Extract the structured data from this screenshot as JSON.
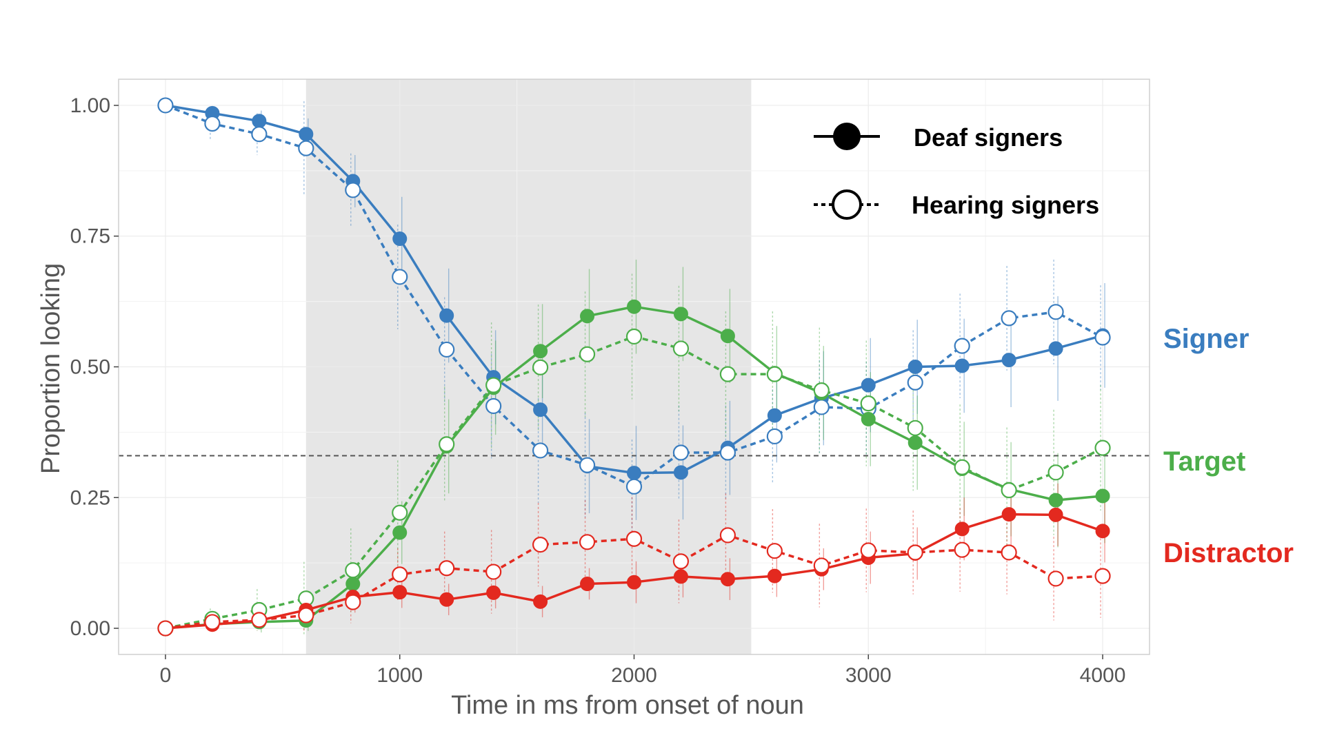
{
  "chart_data": {
    "type": "line",
    "xlabel": "Time in ms from onset of noun",
    "ylabel": "Proportion looking",
    "xlim": [
      -200,
      4200
    ],
    "ylim": [
      -0.05,
      1.05
    ],
    "x_ticks": [
      0,
      1000,
      2000,
      3000,
      4000
    ],
    "x_tick_labels": [
      "0",
      "1000",
      "2000",
      "3000",
      "4000"
    ],
    "y_ticks": [
      0,
      0.25,
      0.5,
      0.75,
      1.0
    ],
    "y_tick_labels": [
      "0.00",
      "0.25",
      "0.50",
      "0.75",
      "1.00"
    ],
    "grid": true,
    "shaded_region": [
      600,
      2500
    ],
    "reference_line_y": 0.33,
    "legend": {
      "placement": "top-right",
      "entries": [
        {
          "label": "Deaf signers",
          "style": "solid-filled"
        },
        {
          "label": "Hearing signers",
          "style": "dashed-open"
        }
      ]
    },
    "x": [
      0,
      200,
      400,
      600,
      800,
      1000,
      1200,
      1400,
      1600,
      1800,
      2000,
      2200,
      2400,
      2600,
      2800,
      3000,
      3200,
      3400,
      3600,
      3800,
      4000
    ],
    "series": [
      {
        "name": "Signer",
        "group": "Deaf signers",
        "color": "#3a7dbf",
        "style": "solid-filled",
        "values": [
          1.0,
          0.985,
          0.97,
          0.945,
          0.855,
          0.745,
          0.598,
          0.48,
          0.418,
          0.31,
          0.297,
          0.298,
          0.345,
          0.407,
          0.44,
          0.465,
          0.5,
          0.502,
          0.513,
          0.535,
          0.56
        ],
        "error": [
          0.0,
          0.01,
          0.02,
          0.03,
          0.05,
          0.08,
          0.09,
          0.09,
          0.09,
          0.09,
          0.09,
          0.09,
          0.09,
          0.09,
          0.09,
          0.09,
          0.09,
          0.09,
          0.09,
          0.1,
          0.1
        ]
      },
      {
        "name": "Signer",
        "group": "Hearing signers",
        "color": "#3a7dbf",
        "style": "dashed-open",
        "values": [
          1.0,
          0.965,
          0.945,
          0.918,
          0.838,
          0.672,
          0.533,
          0.425,
          0.34,
          0.312,
          0.271,
          0.336,
          0.336,
          0.367,
          0.423,
          0.42,
          0.47,
          0.54,
          0.593,
          0.605,
          0.556
        ],
        "error": [
          0.0,
          0.03,
          0.04,
          0.09,
          0.07,
          0.1,
          0.1,
          0.1,
          0.1,
          0.1,
          0.09,
          0.09,
          0.09,
          0.09,
          0.09,
          0.09,
          0.1,
          0.1,
          0.1,
          0.1,
          0.1
        ]
      },
      {
        "name": "Target",
        "group": "Deaf signers",
        "color": "#4cae4a",
        "style": "solid-filled",
        "values": [
          0.0,
          0.008,
          0.012,
          0.015,
          0.085,
          0.183,
          0.348,
          0.46,
          0.53,
          0.597,
          0.615,
          0.601,
          0.559,
          0.488,
          0.45,
          0.4,
          0.355,
          0.305,
          0.266,
          0.245,
          0.253
        ],
        "error": [
          0.0,
          0.01,
          0.02,
          0.02,
          0.04,
          0.06,
          0.09,
          0.09,
          0.09,
          0.09,
          0.09,
          0.09,
          0.09,
          0.09,
          0.09,
          0.09,
          0.09,
          0.09,
          0.09,
          0.09,
          0.09
        ]
      },
      {
        "name": "Target",
        "group": "Hearing signers",
        "color": "#4cae4a",
        "style": "dashed-open",
        "values": [
          0.0,
          0.018,
          0.035,
          0.057,
          0.111,
          0.221,
          0.352,
          0.465,
          0.499,
          0.524,
          0.558,
          0.535,
          0.486,
          0.486,
          0.455,
          0.43,
          0.383,
          0.308,
          0.264,
          0.298,
          0.345
        ],
        "error": [
          0.0,
          0.02,
          0.04,
          0.07,
          0.08,
          0.1,
          0.11,
          0.12,
          0.12,
          0.12,
          0.12,
          0.12,
          0.12,
          0.12,
          0.12,
          0.12,
          0.12,
          0.12,
          0.12,
          0.12,
          0.12
        ]
      },
      {
        "name": "Distractor",
        "group": "Deaf signers",
        "color": "#e3291f",
        "style": "solid-filled",
        "values": [
          0.0,
          0.007,
          0.015,
          0.035,
          0.06,
          0.069,
          0.055,
          0.068,
          0.051,
          0.085,
          0.088,
          0.099,
          0.094,
          0.1,
          0.113,
          0.135,
          0.143,
          0.19,
          0.218,
          0.217,
          0.186
        ],
        "error": [
          0.0,
          0.01,
          0.01,
          0.02,
          0.03,
          0.03,
          0.03,
          0.03,
          0.03,
          0.03,
          0.04,
          0.04,
          0.04,
          0.04,
          0.04,
          0.05,
          0.05,
          0.06,
          0.06,
          0.06,
          0.06
        ]
      },
      {
        "name": "Distractor",
        "group": "Hearing signers",
        "color": "#e3291f",
        "style": "dashed-open",
        "values": [
          0.0,
          0.012,
          0.016,
          0.025,
          0.05,
          0.103,
          0.115,
          0.108,
          0.16,
          0.165,
          0.171,
          0.128,
          0.178,
          0.148,
          0.12,
          0.149,
          0.145,
          0.15,
          0.145,
          0.095,
          0.1
        ],
        "error": [
          0.0,
          0.01,
          0.02,
          0.03,
          0.04,
          0.05,
          0.07,
          0.08,
          0.08,
          0.08,
          0.08,
          0.08,
          0.08,
          0.08,
          0.08,
          0.08,
          0.08,
          0.08,
          0.08,
          0.08,
          0.08
        ]
      }
    ],
    "series_labels": [
      {
        "text": "Signer",
        "color": "#3a7dbf",
        "y": 0.555
      },
      {
        "text": "Target",
        "color": "#4cae4a",
        "y": 0.32
      },
      {
        "text": "Distractor",
        "color": "#e3291f",
        "y": 0.145
      }
    ]
  }
}
